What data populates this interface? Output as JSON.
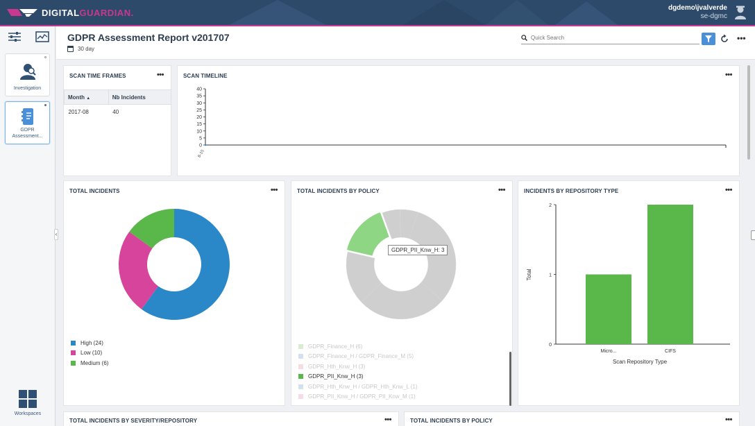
{
  "header": {
    "brand_part1": "DIGITAL",
    "brand_part2": "GUARDIAN.",
    "user": "dgdemo\\jvalverde",
    "server": "se-dgmc",
    "colors": {
      "header_bg": "#2e4a6b",
      "brand_accent": "#c8388f"
    }
  },
  "rail": {
    "items": [
      {
        "label": "Investigation",
        "icon": "investigator-icon"
      },
      {
        "label": "GDPR Assessment...",
        "icon": "report-icon",
        "active": true
      }
    ],
    "workspaces_label": "Workspaces"
  },
  "report": {
    "title": "GDPR Assessment Report v201707",
    "timeframe": "30 day",
    "search_placeholder": "Quick Search"
  },
  "panels": {
    "scan_time_frames": {
      "title": "SCAN TIME FRAMES",
      "columns": [
        "Month",
        "Nb Incidents"
      ],
      "rows": [
        [
          "2017-08",
          "40"
        ]
      ]
    },
    "scan_timeline": {
      "title": "SCAN TIMELINE",
      "y_ticks": [
        "40",
        "35",
        "30",
        "25",
        "20",
        "15",
        "10",
        "5",
        "0"
      ],
      "x_tick": "8-15"
    },
    "total_incidents": {
      "title": "TOTAL INCIDENTS",
      "legend": [
        {
          "label": "High (24)",
          "color": "#2b88c8"
        },
        {
          "label": "Low (10)",
          "color": "#d6449b"
        },
        {
          "label": "Medium (6)",
          "color": "#5ab84a"
        }
      ]
    },
    "by_policy": {
      "title": "TOTAL INCIDENTS BY POLICY",
      "tooltip": "GDPR_PII_Knw_H: 3",
      "legend": [
        {
          "label": "GDPR_Finance_H (6)",
          "color": "#d7ecd0",
          "dim": true
        },
        {
          "label": "GDPR_Finance_H / GDPR_Finance_M (5)",
          "color": "#d3e0ee",
          "dim": true
        },
        {
          "label": "GDPR_Hth_Knw_H (3)",
          "color": "#f6dbe6",
          "dim": true
        },
        {
          "label": "GDPR_PII_Knw_H (3)",
          "color": "#5ab84a",
          "dim": false
        },
        {
          "label": "GDPR_Hth_Knw_H / GDPR_Hth_Knw_L (1)",
          "color": "#d3e0ee",
          "dim": true
        },
        {
          "label": "GDPR_PII_Knw_H / GDPR_PII_Knw_M (1)",
          "color": "#f6dbe6",
          "dim": true
        }
      ]
    },
    "by_repo_type": {
      "title": "INCIDENTS BY REPOSITORY TYPE",
      "ylabel": "Total",
      "xlabel": "Scan Repository Type"
    },
    "by_severity_repo": {
      "title": "TOTAL INCIDENTS BY SEVERITY/REPOSITORY"
    },
    "by_policy_2": {
      "title": "TOTAL INCIDENTS BY POLICY"
    }
  },
  "chart_data": [
    {
      "type": "line",
      "title": "SCAN TIMELINE",
      "x": [
        "8-15"
      ],
      "ylim": [
        0,
        40
      ],
      "y_ticks": [
        0,
        5,
        10,
        15,
        20,
        25,
        30,
        35,
        40
      ],
      "series": [
        {
          "values": [
            0
          ]
        }
      ]
    },
    {
      "type": "pie",
      "title": "TOTAL INCIDENTS",
      "categories": [
        "High",
        "Low",
        "Medium"
      ],
      "values": [
        24,
        10,
        6
      ],
      "colors": [
        "#2b88c8",
        "#d6449b",
        "#5ab84a"
      ]
    },
    {
      "type": "pie",
      "title": "TOTAL INCIDENTS BY POLICY",
      "categories": [
        "GDPR_Finance_H",
        "GDPR_Finance_H / GDPR_Finance_M",
        "GDPR_Hth_Knw_H",
        "GDPR_PII_Knw_H",
        "GDPR_Hth_Knw_H / GDPR_Hth_Knw_L",
        "GDPR_PII_Knw_H / GDPR_PII_Knw_M"
      ],
      "values": [
        6,
        5,
        3,
        3,
        1,
        1
      ],
      "highlighted": "GDPR_PII_Knw_H"
    },
    {
      "type": "bar",
      "title": "INCIDENTS BY REPOSITORY TYPE",
      "categories": [
        "Micro...",
        "CIFS"
      ],
      "values": [
        1,
        2
      ],
      "ylim": [
        0,
        2
      ],
      "y_ticks": [
        0,
        1,
        2
      ],
      "xlabel": "Scan Repository Type",
      "ylabel": "Total",
      "color": "#5ab84a"
    }
  ]
}
